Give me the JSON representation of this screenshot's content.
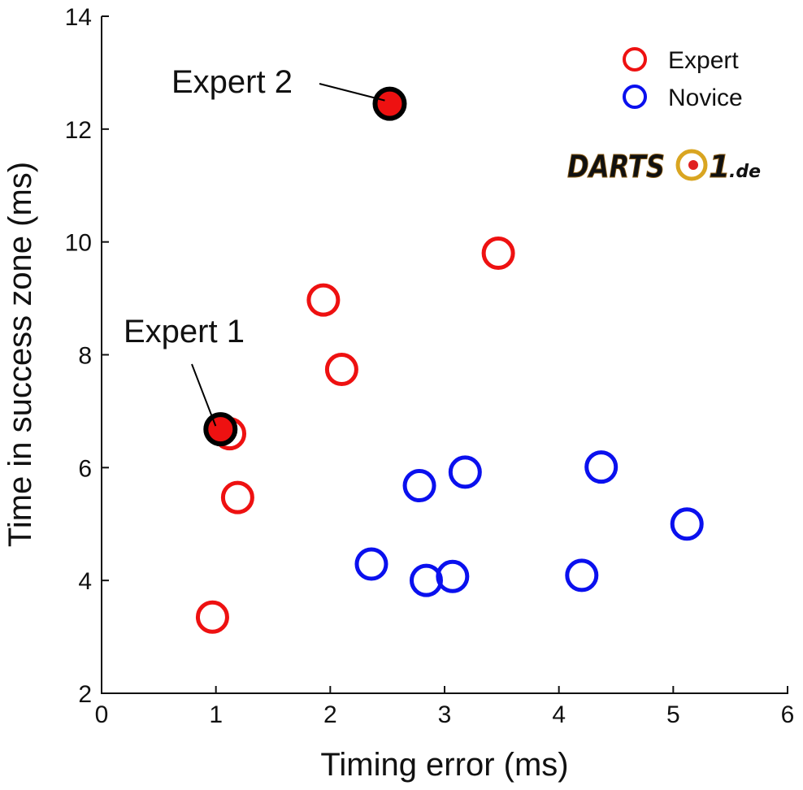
{
  "colors": {
    "expert": "#ee1111",
    "novice": "#0a10ee",
    "axis": "#111111",
    "watermark_gold": "#d9a521",
    "watermark_red": "#e02020"
  },
  "chart_data": {
    "type": "scatter",
    "xlabel": "Timing error (ms)",
    "ylabel": "Time in success zone (ms)",
    "xlim": [
      0,
      6
    ],
    "ylim": [
      2,
      14
    ],
    "xticks": [
      "0",
      "1",
      "2",
      "3",
      "4",
      "5",
      "6"
    ],
    "yticks": [
      "2",
      "4",
      "6",
      "8",
      "10",
      "12",
      "14"
    ],
    "grid": false,
    "legend_position": "top-right",
    "series": [
      {
        "name": "Expert",
        "marker": "open-circle",
        "points": [
          {
            "x": 0.97,
            "y": 3.35
          },
          {
            "x": 1.19,
            "y": 5.47
          },
          {
            "x": 1.12,
            "y": 6.6
          },
          {
            "x": 2.1,
            "y": 7.74
          },
          {
            "x": 1.94,
            "y": 8.97
          },
          {
            "x": 3.47,
            "y": 9.8
          }
        ]
      },
      {
        "name": "Novice",
        "marker": "open-circle",
        "points": [
          {
            "x": 2.36,
            "y": 4.29
          },
          {
            "x": 2.84,
            "y": 4.0
          },
          {
            "x": 3.07,
            "y": 4.07
          },
          {
            "x": 2.78,
            "y": 5.68
          },
          {
            "x": 3.18,
            "y": 5.92
          },
          {
            "x": 4.2,
            "y": 4.09
          },
          {
            "x": 4.37,
            "y": 6.01
          },
          {
            "x": 5.12,
            "y": 5.0
          }
        ]
      }
    ],
    "highlighted": [
      {
        "label": "Expert 1",
        "x": 1.04,
        "y": 6.68
      },
      {
        "label": "Expert 2",
        "x": 2.52,
        "y": 12.45
      }
    ]
  },
  "watermark": {
    "word": "DARTS",
    "digit": "1",
    "suffix": ".de"
  }
}
